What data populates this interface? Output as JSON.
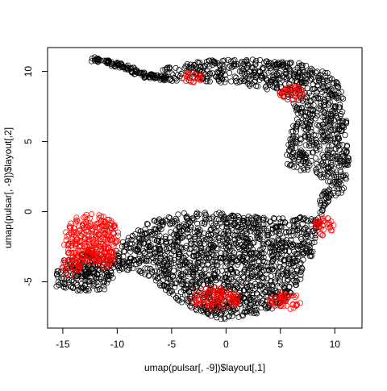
{
  "chart_data": {
    "type": "scatter",
    "title": "",
    "xlabel": "umap(pulsar[, -9])$layout[,1]",
    "ylabel": "umap(pulsar[, -9])$layout[,2]",
    "xlim": [
      -16.4,
      12.5
    ],
    "ylim": [
      -8.3,
      11.7
    ],
    "xticks": [
      -15,
      -10,
      -5,
      0,
      5,
      10
    ],
    "yticks": [
      -5,
      0,
      5,
      10
    ],
    "xtick_labels": [
      "-15",
      "-10",
      "-5",
      "0",
      "5",
      "10"
    ],
    "ytick_labels": [
      "-5",
      "0",
      "5",
      "10"
    ],
    "grid": false,
    "legend": "none",
    "marker": "open-circle",
    "series": [
      {
        "color": "#000000",
        "regions": [
          {
            "shape": "polyline",
            "width": 0.35,
            "points": [
              [
                -12.3,
                10.9
              ],
              [
                -9.5,
                10.4
              ],
              [
                -7.5,
                9.7
              ],
              [
                -5.5,
                9.5
              ]
            ]
          },
          {
            "shape": "polygon",
            "points": [
              [
                -6,
                10.2
              ],
              [
                -2,
                10.8
              ],
              [
                2,
                10.9
              ],
              [
                6,
                10.7
              ],
              [
                9,
                10.2
              ],
              [
                10.6,
                9
              ],
              [
                11.2,
                6
              ],
              [
                11.3,
                3
              ],
              [
                10.8,
                1.4
              ],
              [
                9,
                0.4
              ],
              [
                8,
                0.3
              ],
              [
                9.5,
                2
              ],
              [
                8,
                2.8
              ],
              [
                6,
                3
              ],
              [
                5.5,
                3.5
              ],
              [
                5.7,
                5
              ],
              [
                6.5,
                7
              ],
              [
                5,
                8.5
              ],
              [
                2,
                9
              ],
              [
                -2,
                9.3
              ],
              [
                -5.5,
                9.3
              ]
            ]
          },
          {
            "shape": "polygon",
            "points": [
              [
                -11.3,
                -4.5
              ],
              [
                -10,
                -2.5
              ],
              [
                -8.5,
                -1.5
              ],
              [
                -7,
                -0.6
              ],
              [
                -4,
                -0.1
              ],
              [
                0,
                0
              ],
              [
                3,
                -0.4
              ],
              [
                6,
                -0.5
              ],
              [
                8.3,
                -0.2
              ],
              [
                9.2,
                0.6
              ],
              [
                8,
                -3
              ],
              [
                6.8,
                -5
              ],
              [
                5.3,
                -6.5
              ],
              [
                3.5,
                -7.2
              ],
              [
                0,
                -7.8
              ],
              [
                -2.5,
                -7.2
              ],
              [
                -4.5,
                -6.3
              ],
              [
                -6.5,
                -5
              ],
              [
                -8.5,
                -4.1
              ],
              [
                -10,
                -4.6
              ],
              [
                -11.3,
                -5.2
              ]
            ]
          },
          {
            "shape": "polygon",
            "points": [
              [
                -15.6,
                -4.2
              ],
              [
                -12.5,
                -4.3
              ],
              [
                -10.5,
                -4.6
              ],
              [
                -11,
                -5.6
              ],
              [
                -13,
                -5.7
              ],
              [
                -15.6,
                -5.4
              ]
            ]
          },
          {
            "shape": "polygon",
            "points": [
              [
                -15,
                -3.2
              ],
              [
                -12.2,
                -2.8
              ],
              [
                -10.6,
                -3.4
              ],
              [
                -10.3,
                -4.4
              ],
              [
                -12,
                -4.8
              ],
              [
                -15,
                -4.5
              ]
            ]
          }
        ]
      },
      {
        "color": "#ff0000",
        "regions": [
          {
            "shape": "ellipse",
            "center": [
              -12.4,
              -1.9
            ],
            "rx": 2.6,
            "ry": 1.75
          },
          {
            "shape": "ellipse",
            "center": [
              -14.2,
              -3.7
            ],
            "rx": 0.9,
            "ry": 0.9
          },
          {
            "shape": "ellipse",
            "center": [
              -11.2,
              -3.2
            ],
            "rx": 1.0,
            "ry": 0.8
          },
          {
            "shape": "ellipse",
            "center": [
              -1,
              -6.2
            ],
            "rx": 2.2,
            "ry": 0.8
          },
          {
            "shape": "ellipse",
            "center": [
              5.5,
              -6.4
            ],
            "rx": 1.5,
            "ry": 0.6
          },
          {
            "shape": "ellipse",
            "center": [
              9.0,
              -1.0
            ],
            "rx": 0.9,
            "ry": 0.7
          },
          {
            "shape": "ellipse",
            "center": [
              6,
              8.4
            ],
            "rx": 1.2,
            "ry": 0.6
          },
          {
            "shape": "ellipse",
            "center": [
              -3,
              9.6
            ],
            "rx": 1.0,
            "ry": 0.4
          }
        ]
      }
    ]
  }
}
